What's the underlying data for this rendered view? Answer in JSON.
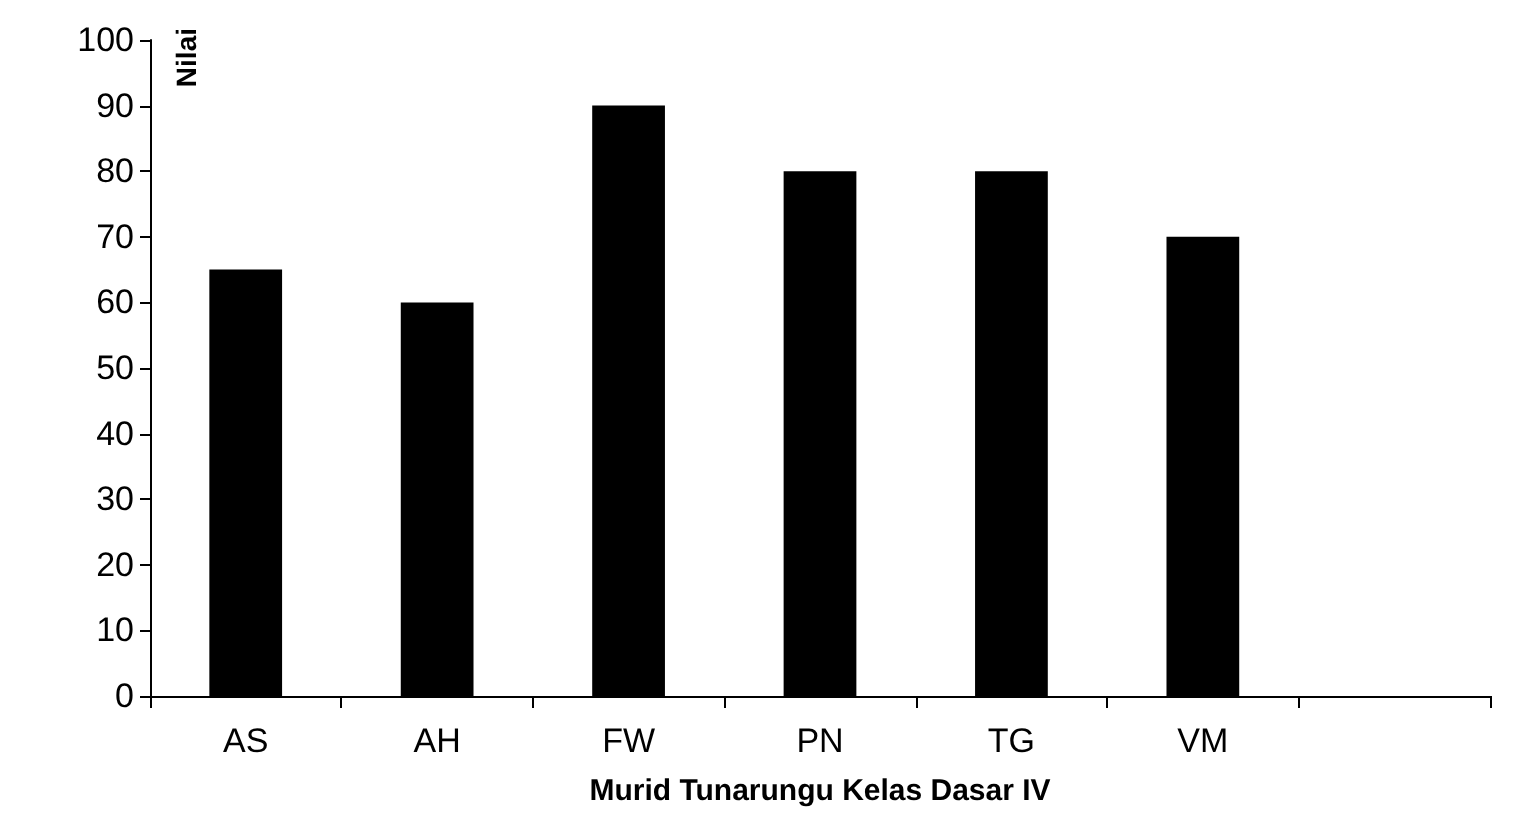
{
  "chart_data": {
    "type": "bar",
    "xlabel": "Murid Tunarungu Kelas Dasar IV",
    "ylabel": "Nilai",
    "categories": [
      "AS",
      "AH",
      "FW",
      "PN",
      "TG",
      "VM",
      null
    ],
    "values": [
      65,
      60,
      90,
      80,
      80,
      70,
      null
    ],
    "color": "#000000",
    "ylim": [
      0,
      100
    ],
    "yticks": [
      0,
      10,
      20,
      30,
      40,
      50,
      60,
      70,
      80,
      90,
      100
    ],
    "grid": false
  }
}
